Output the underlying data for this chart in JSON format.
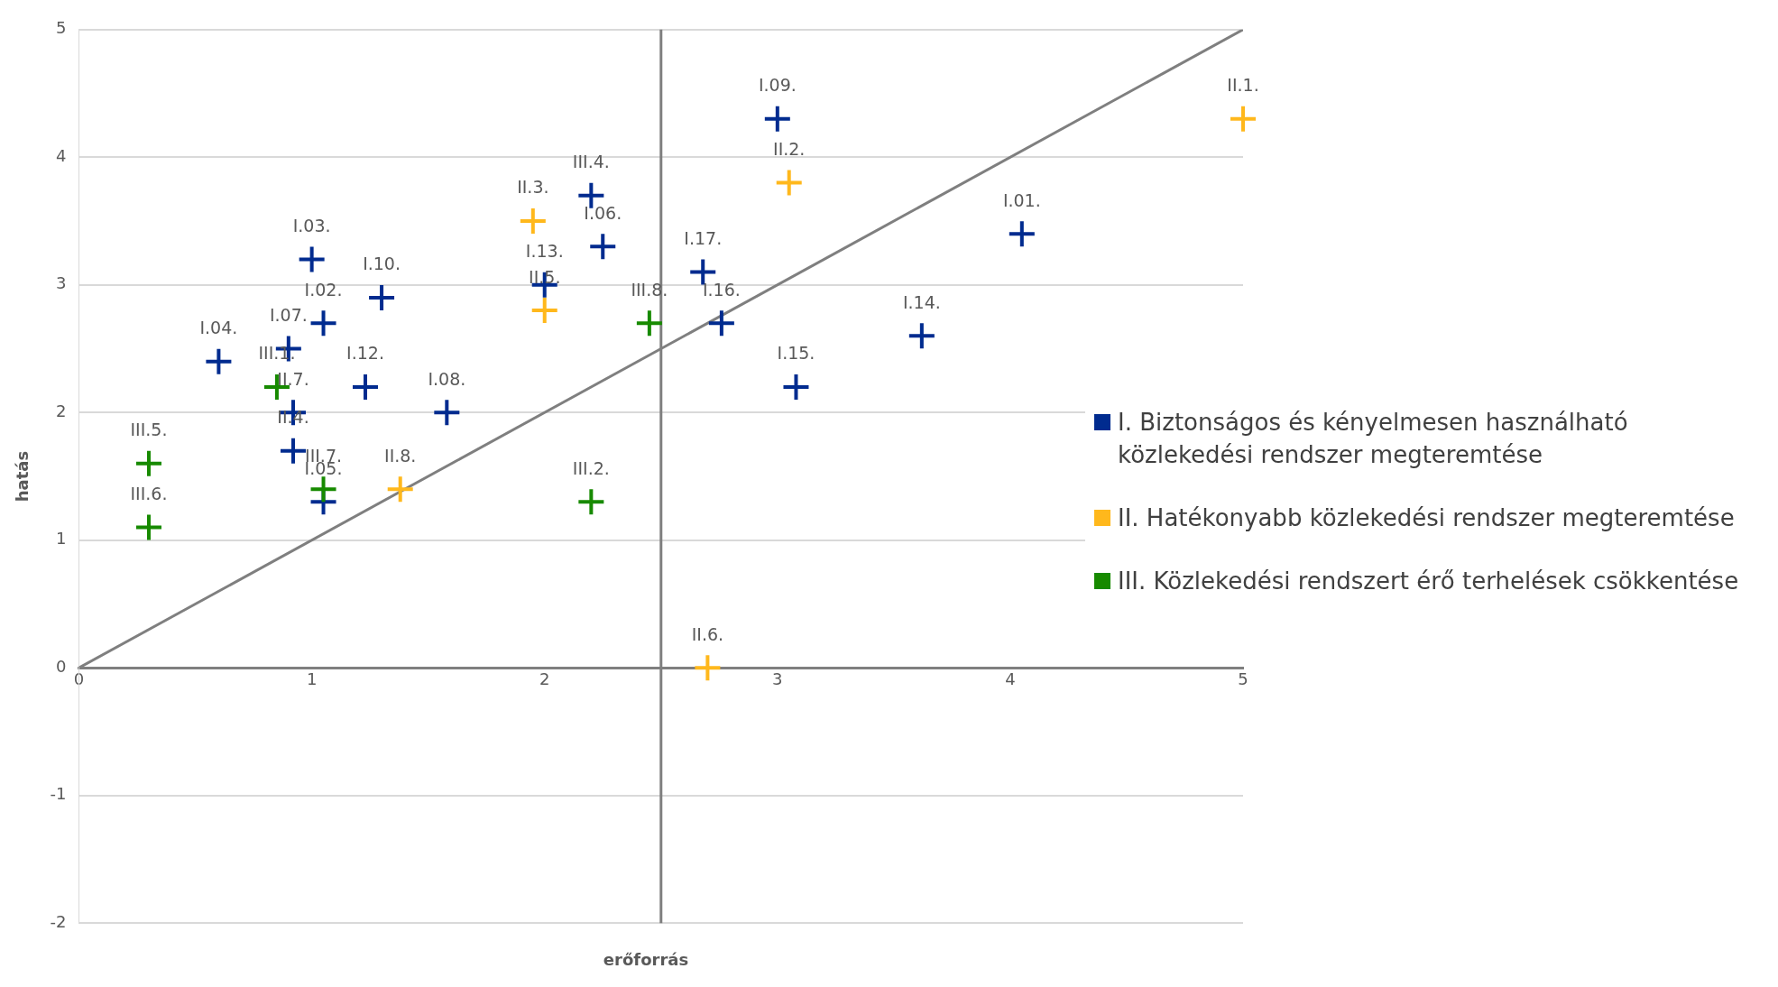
{
  "chart_data": {
    "type": "scatter",
    "xlabel": "erőforrás",
    "ylabel": "hatás",
    "xlim": [
      0,
      5
    ],
    "xticks": [
      0,
      1,
      2,
      3,
      4,
      5
    ],
    "ylim": [
      -2,
      5
    ],
    "yticks": [
      -2,
      -1,
      0,
      1,
      2,
      3,
      4,
      5
    ],
    "grid": "y",
    "legend": "right",
    "marker": "cross",
    "series": [
      {
        "name": "I. Biztonságos és kényelmesen használható közlekedési rendszer megteremtése",
        "color": "#002b8f",
        "x": [
          4.05,
          1.05,
          1.0,
          0.6,
          1.05,
          2.25,
          0.9,
          1.58,
          3.0,
          1.3,
          1.23,
          2.0,
          3.62,
          3.08,
          2.76,
          2.68,
          2.2,
          0.92,
          0.92
        ],
        "values": [
          3.4,
          2.7,
          3.2,
          2.4,
          1.3,
          3.3,
          2.5,
          2.0,
          4.3,
          2.9,
          2.2,
          3.0,
          2.6,
          2.2,
          2.7,
          3.1,
          3.7,
          2.0,
          1.7
        ]
      },
      {
        "name": "II. Hatékonyabb közlekedési rendszer megteremtése",
        "color": "#ffb81c",
        "x": [
          5.0,
          3.05,
          1.95,
          2.0,
          2.7,
          1.38
        ],
        "values": [
          4.3,
          3.8,
          3.5,
          2.8,
          0,
          1.4
        ]
      },
      {
        "name": "III. Közlekedési rendszert érő terhelések csökkentése",
        "color": "#178a00",
        "x": [
          0.85,
          2.2,
          0.3,
          0.3,
          1.05,
          2.45
        ],
        "values": [
          2.2,
          1.3,
          1.6,
          1.1,
          1.4,
          2.7
        ]
      },
      {
        "type": "line",
        "marker": "none",
        "color": "#7f7f7f",
        "x": [
          0,
          5
        ],
        "values": [
          0,
          5
        ]
      }
    ],
    "ref_lines": [
      {
        "axis": "x",
        "value": 2.5,
        "color": "#7f7f7f"
      }
    ],
    "annotations": [
      {
        "text": "I.01.",
        "x": 4.05,
        "y": 3.4
      },
      {
        "text": "I.02.",
        "x": 1.05,
        "y": 2.7
      },
      {
        "text": "I.03.",
        "x": 1.0,
        "y": 3.2
      },
      {
        "text": "I.04.",
        "x": 0.6,
        "y": 2.4
      },
      {
        "text": "I.05.",
        "x": 1.05,
        "y": 1.3
      },
      {
        "text": "I.06.",
        "x": 2.25,
        "y": 3.3
      },
      {
        "text": "I.07.",
        "x": 0.9,
        "y": 2.5
      },
      {
        "text": "I.08.",
        "x": 1.58,
        "y": 2.0
      },
      {
        "text": "I.09.",
        "x": 3.0,
        "y": 4.3
      },
      {
        "text": "I.10.",
        "x": 1.3,
        "y": 2.9
      },
      {
        "text": "I.12.",
        "x": 1.23,
        "y": 2.2
      },
      {
        "text": "I.13.",
        "x": 2.0,
        "y": 3.0
      },
      {
        "text": "I.14.",
        "x": 3.62,
        "y": 2.6
      },
      {
        "text": "I.15.",
        "x": 3.08,
        "y": 2.2
      },
      {
        "text": "I.16.",
        "x": 2.76,
        "y": 2.7
      },
      {
        "text": "I.17.",
        "x": 2.68,
        "y": 3.1
      },
      {
        "text": "III.4.",
        "x": 2.2,
        "y": 3.7
      },
      {
        "text": "II.7.",
        "x": 0.92,
        "y": 2.0
      },
      {
        "text": "II.4.",
        "x": 0.92,
        "y": 1.7
      },
      {
        "text": "II.1.",
        "x": 5.0,
        "y": 4.3
      },
      {
        "text": "II.2.",
        "x": 3.05,
        "y": 3.8
      },
      {
        "text": "II.3.",
        "x": 1.95,
        "y": 3.5
      },
      {
        "text": "II.5.",
        "x": 2.0,
        "y": 2.8
      },
      {
        "text": "II.6.",
        "x": 2.7,
        "y": 0
      },
      {
        "text": "II.8.",
        "x": 1.38,
        "y": 1.4
      },
      {
        "text": "III.1.",
        "x": 0.85,
        "y": 2.2
      },
      {
        "text": "III.2.",
        "x": 2.2,
        "y": 1.3
      },
      {
        "text": "III.5.",
        "x": 0.3,
        "y": 1.6
      },
      {
        "text": "III.6.",
        "x": 0.3,
        "y": 1.1
      },
      {
        "text": "III.7.",
        "x": 1.05,
        "y": 1.4
      },
      {
        "text": "III.8.",
        "x": 2.45,
        "y": 2.7
      }
    ]
  }
}
